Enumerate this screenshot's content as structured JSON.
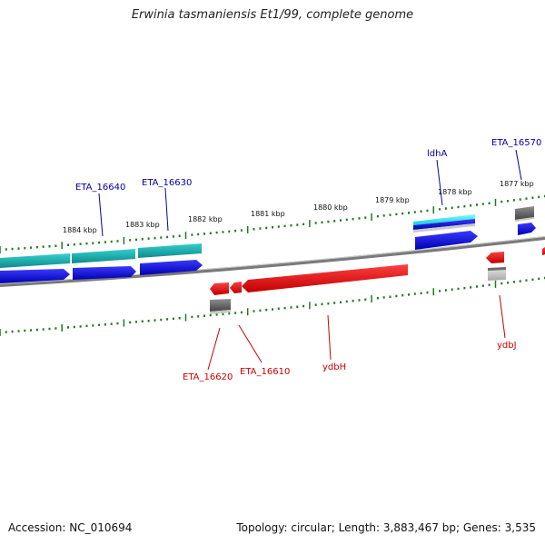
{
  "title": "Erwinia tasmaniensis Et1/99, complete genome",
  "footer": {
    "accession": "Accession: NC_010694",
    "stats": "Topology: circular; Length: 3,883,467 bp; Genes: 3,535"
  },
  "colors": {
    "backbone": "#7a7a7a",
    "tick": "#1f7a1f",
    "forward_label": "#0000aa",
    "reverse_label": "#cc0000",
    "cds_forward": "#1010dd",
    "cds_reverse": "#ee1111",
    "gene_teal": "#1aa8a8",
    "gene_cyan": "#22e0e0",
    "gene_gray": "#6a6a6a"
  },
  "scale_labels": [
    "1884 kbp",
    "1883 kbp",
    "1882 kbp",
    "1881 kbp",
    "1880 kbp",
    "1879 kbp",
    "1878 kbp",
    "1877 kbp"
  ],
  "forward_genes": [
    {
      "id": "eta16640",
      "label": "ETA_16640"
    },
    {
      "id": "eta16630",
      "label": "ETA_16630"
    },
    {
      "id": "ldha",
      "label": "ldhA"
    },
    {
      "id": "eta16570",
      "label": "ETA_16570"
    }
  ],
  "reverse_genes": [
    {
      "id": "eta16620",
      "label": "ETA_16620"
    },
    {
      "id": "eta16610",
      "label": "ETA_16610"
    },
    {
      "id": "ydbh",
      "label": "ydbH"
    },
    {
      "id": "ydbj",
      "label": "ydbJ"
    }
  ]
}
